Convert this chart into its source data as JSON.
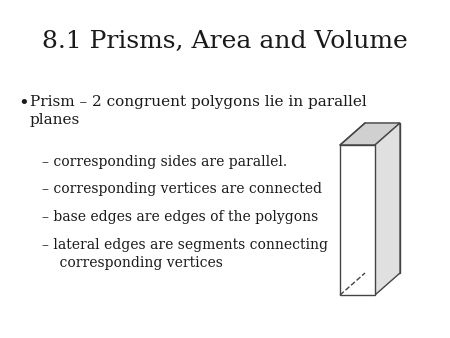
{
  "title": "8.1 Prisms, Area and Volume",
  "title_fontsize": 18,
  "background_color": "#ffffff",
  "text_color": "#1a1a1a",
  "bullet_main": "Prism – 2 congruent polygons lie in parallel\nplanes",
  "bullet_items": [
    "– corresponding sides are parallel.",
    "– corresponding vertices are connected",
    "– base edges are edges of the polygons",
    "– lateral edges are segments connecting\n    corresponding vertices"
  ],
  "bullet_fontsize": 11,
  "sub_fontsize": 10,
  "prism_front_color": "#ffffff",
  "prism_top_color": "#d0d0d0",
  "prism_right_color": "#e0e0e0",
  "prism_edge_color": "#444444",
  "prism_lw": 1.0
}
